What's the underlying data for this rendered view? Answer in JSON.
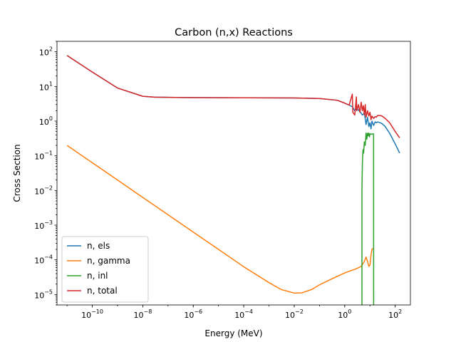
{
  "chart_data": {
    "type": "line",
    "title": "Carbon (n,x) Reactions",
    "xlabel": "Energy (MeV)",
    "ylabel": "Cross Section",
    "xscale": "log",
    "yscale": "log",
    "xlim": [
      4e-12,
      400
    ],
    "ylim": [
      5e-06,
      200
    ],
    "grid": false,
    "legend_position": "lower-left",
    "x_ticks": [
      {
        "value": 1e-10,
        "base": "10",
        "exp": "−10"
      },
      {
        "value": 1e-08,
        "base": "10",
        "exp": "−8"
      },
      {
        "value": 1e-06,
        "base": "10",
        "exp": "−6"
      },
      {
        "value": 0.0001,
        "base": "10",
        "exp": "−4"
      },
      {
        "value": 0.01,
        "base": "10",
        "exp": "−2"
      },
      {
        "value": 1,
        "base": "10",
        "exp": "0"
      },
      {
        "value": 100,
        "base": "10",
        "exp": "2"
      }
    ],
    "y_ticks": [
      {
        "value": 1e-05,
        "base": "10",
        "exp": "−5"
      },
      {
        "value": 0.0001,
        "base": "10",
        "exp": "−4"
      },
      {
        "value": 0.001,
        "base": "10",
        "exp": "−3"
      },
      {
        "value": 0.01,
        "base": "10",
        "exp": "−2"
      },
      {
        "value": 0.1,
        "base": "10",
        "exp": "−1"
      },
      {
        "value": 1,
        "base": "10",
        "exp": "0"
      },
      {
        "value": 10,
        "base": "10",
        "exp": "1"
      },
      {
        "value": 100,
        "base": "10",
        "exp": "2"
      }
    ],
    "series": [
      {
        "name": "n, els",
        "color": "#1f77b4",
        "points": [
          [
            1e-11,
            78
          ],
          [
            1e-10,
            26
          ],
          [
            1e-09,
            9
          ],
          [
            1e-08,
            5.2
          ],
          [
            3e-08,
            4.9
          ],
          [
            1e-06,
            4.75
          ],
          [
            0.0001,
            4.72
          ],
          [
            0.01,
            4.65
          ],
          [
            0.1,
            4.5
          ],
          [
            0.5,
            4.0
          ],
          [
            1,
            3.3
          ],
          [
            1.5,
            2.9
          ],
          [
            2,
            2.6
          ],
          [
            2.5,
            2.0
          ],
          [
            3,
            2.3
          ],
          [
            4,
            1.9
          ],
          [
            5,
            1.5
          ],
          [
            6,
            1.7
          ],
          [
            7,
            0.8
          ],
          [
            8,
            1.3
          ],
          [
            9,
            0.7
          ],
          [
            10,
            0.9
          ],
          [
            11,
            0.6
          ],
          [
            12,
            1.0
          ],
          [
            14,
            0.75
          ],
          [
            16,
            0.95
          ],
          [
            18,
            0.9
          ],
          [
            20,
            0.95
          ],
          [
            25,
            0.9
          ],
          [
            30,
            0.85
          ],
          [
            40,
            0.7
          ],
          [
            60,
            0.45
          ],
          [
            80,
            0.3
          ],
          [
            100,
            0.22
          ],
          [
            150,
            0.12
          ]
        ]
      },
      {
        "name": "n, gamma",
        "color": "#ff7f0e",
        "points": [
          [
            1e-11,
            0.2
          ],
          [
            1e-10,
            0.063
          ],
          [
            1e-09,
            0.02
          ],
          [
            1e-08,
            0.0063
          ],
          [
            1e-07,
            0.002
          ],
          [
            1e-06,
            0.00063
          ],
          [
            1e-05,
            0.0002
          ],
          [
            0.0001,
            6.3e-05
          ],
          [
            0.001,
            2.2e-05
          ],
          [
            0.003,
            1.4e-05
          ],
          [
            0.01,
            1.1e-05
          ],
          [
            0.02,
            1.12e-05
          ],
          [
            0.05,
            1.4e-05
          ],
          [
            0.1,
            1.9e-05
          ],
          [
            0.3,
            2.8e-05
          ],
          [
            1,
            4.2e-05
          ],
          [
            3,
            5.6e-05
          ],
          [
            4.5,
            6.5e-05
          ],
          [
            6,
            9e-05
          ],
          [
            7,
            0.00012
          ],
          [
            8,
            9e-05
          ],
          [
            9,
            6.5e-05
          ],
          [
            10,
            7e-05
          ],
          [
            11,
            0.00014
          ],
          [
            12,
            0.0002
          ],
          [
            13,
            0.00021
          ],
          [
            14,
            0.00021
          ]
        ]
      },
      {
        "name": "n, inl",
        "color": "#2ca02c",
        "points": [
          [
            4.81,
            5e-06
          ],
          [
            4.82,
            0.01
          ],
          [
            5,
            0.06
          ],
          [
            5.3,
            0.15
          ],
          [
            5.6,
            0.12
          ],
          [
            6,
            0.25
          ],
          [
            6.5,
            0.2
          ],
          [
            7,
            0.45
          ],
          [
            7.5,
            0.3
          ],
          [
            8,
            0.45
          ],
          [
            8.5,
            0.38
          ],
          [
            9,
            0.45
          ],
          [
            9.5,
            0.35
          ],
          [
            10,
            0.43
          ],
          [
            11,
            0.42
          ],
          [
            12,
            0.42
          ],
          [
            13,
            0.43
          ],
          [
            13.9,
            0.43
          ],
          [
            14,
            5e-06
          ]
        ]
      },
      {
        "name": "n, total",
        "color": "#d62728",
        "points": [
          [
            1e-11,
            78
          ],
          [
            1e-10,
            26
          ],
          [
            1e-09,
            9
          ],
          [
            1e-08,
            5.2
          ],
          [
            3e-08,
            4.9
          ],
          [
            1e-06,
            4.75
          ],
          [
            0.0001,
            4.72
          ],
          [
            0.01,
            4.65
          ],
          [
            0.1,
            4.5
          ],
          [
            0.5,
            4.0
          ],
          [
            1,
            3.3
          ],
          [
            1.5,
            2.9
          ],
          [
            2,
            6.0
          ],
          [
            2.1,
            1.8
          ],
          [
            2.5,
            1.5
          ],
          [
            2.9,
            5.0
          ],
          [
            3,
            2.0
          ],
          [
            3.5,
            3.0
          ],
          [
            4,
            1.8
          ],
          [
            4.5,
            3.5
          ],
          [
            5,
            2.0
          ],
          [
            5.5,
            2.8
          ],
          [
            6,
            1.5
          ],
          [
            6.5,
            3.0
          ],
          [
            7,
            1.3
          ],
          [
            8,
            2.0
          ],
          [
            9,
            1.4
          ],
          [
            10,
            1.8
          ],
          [
            11,
            1.1
          ],
          [
            12,
            1.4
          ],
          [
            14,
            1.2
          ],
          [
            16,
            1.35
          ],
          [
            18,
            1.3
          ],
          [
            20,
            1.45
          ],
          [
            25,
            1.45
          ],
          [
            30,
            1.4
          ],
          [
            40,
            1.2
          ],
          [
            60,
            0.9
          ],
          [
            80,
            0.65
          ],
          [
            100,
            0.5
          ],
          [
            150,
            0.33
          ]
        ]
      }
    ]
  }
}
